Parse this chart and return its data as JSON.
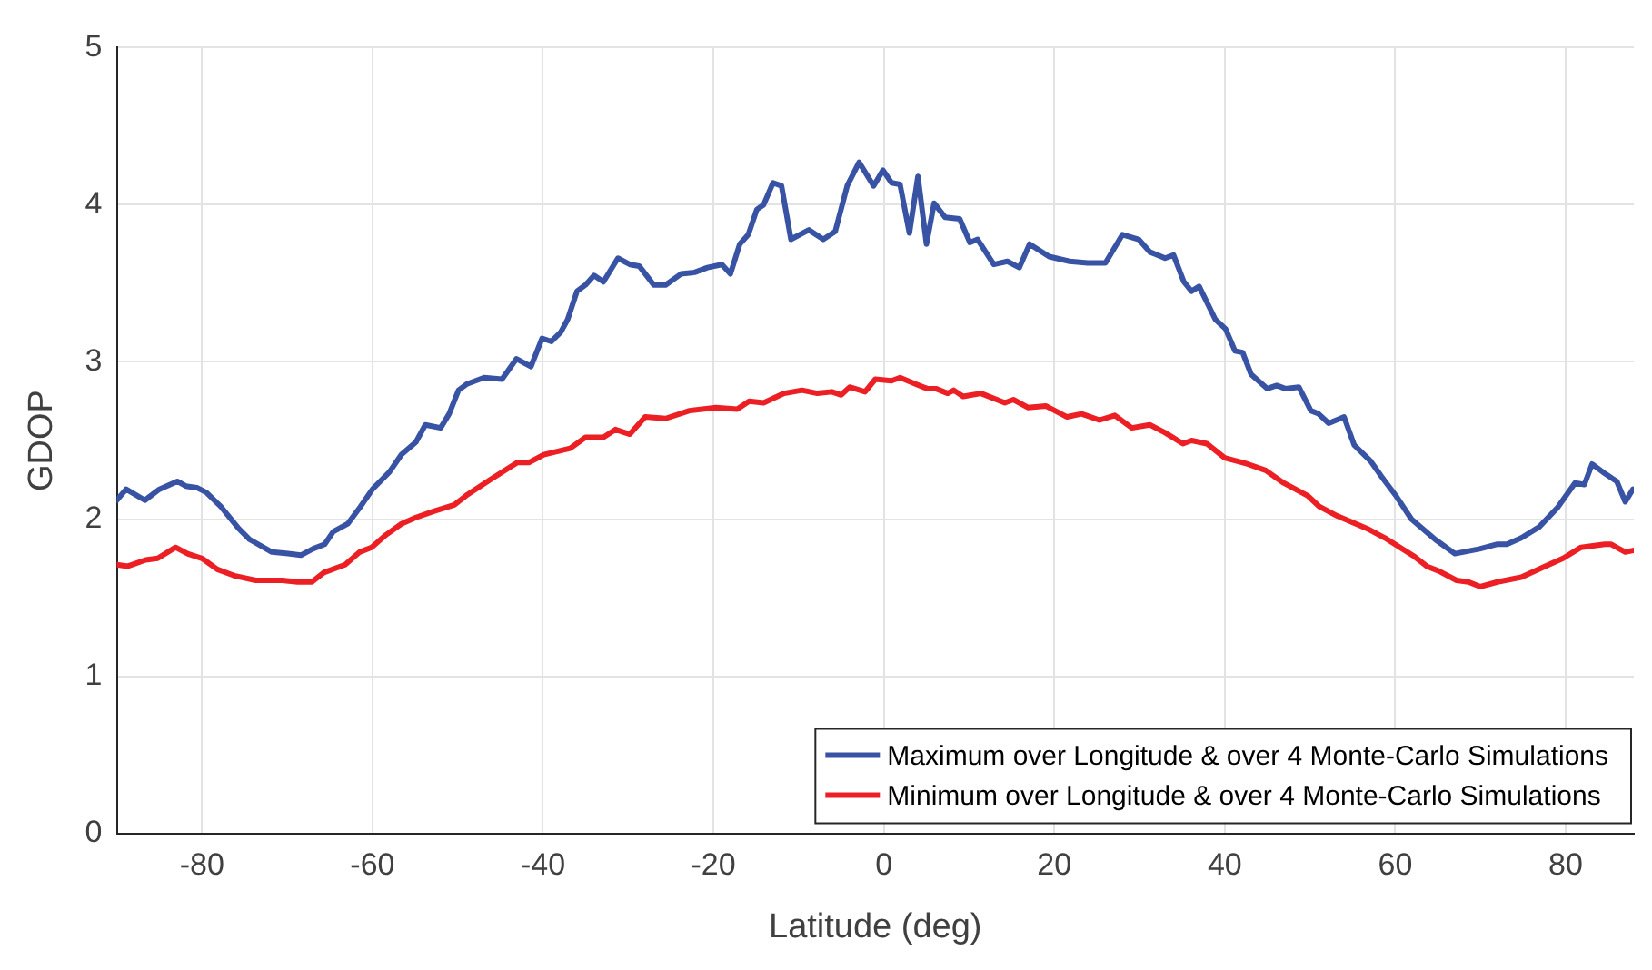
{
  "chart_data": {
    "type": "line",
    "xlabel": "Latitude (deg)",
    "ylabel": "GDOP",
    "xlim": [
      -90,
      88
    ],
    "xticks": [
      -80,
      -60,
      -40,
      -20,
      0,
      20,
      40,
      60,
      80
    ],
    "ylim": [
      0,
      5
    ],
    "yticks": [
      0,
      1,
      2,
      3,
      4,
      5
    ],
    "grid": true,
    "legend": "bottom right",
    "marker": "none",
    "line_style": "solid",
    "series": [
      {
        "name": "Maximum over Longitude & over 4 Monte-Carlo Simulations",
        "color": "#3953a4",
        "x": [
          -90,
          -88.9,
          -86.7,
          -85,
          -82.9,
          -81.9,
          -80.6,
          -79.5,
          -77.8,
          -75.7,
          -74.4,
          -71.8,
          -69.9,
          -68.4,
          -67,
          -65.6,
          -64.6,
          -62.9,
          -61.4,
          -60,
          -58,
          -56.6,
          -54.9,
          -53.8,
          -52,
          -51,
          -49.9,
          -48.9,
          -46.9,
          -44.8,
          -43.1,
          -41.4,
          -40.1,
          -39,
          -37.9,
          -37.1,
          -36,
          -35,
          -34,
          -32.9,
          -31.2,
          -29.8,
          -28.7,
          -27,
          -25.6,
          -23.8,
          -22.2,
          -20.7,
          -19,
          -18,
          -16.9,
          -15.9,
          -14.9,
          -14.1,
          -13,
          -12,
          -10.9,
          -8.8,
          -7.1,
          -5.7,
          -4.3,
          -2.9,
          -1.2,
          -0.1,
          0.9,
          1.9,
          3,
          4,
          5,
          5.9,
          7.2,
          8.9,
          10.1,
          11,
          12.9,
          14.5,
          15.9,
          17.1,
          19.4,
          21.8,
          23.9,
          26,
          28,
          29.9,
          31.2,
          33,
          34,
          35.2,
          36.1,
          37,
          38.9,
          40.1,
          41.2,
          42.1,
          43.1,
          45,
          46.1,
          47.1,
          48.7,
          50.1,
          51,
          52.2,
          54,
          55.2,
          57.1,
          58.4,
          60.2,
          61.9,
          64.7,
          67,
          69.9,
          72,
          73.1,
          74.8,
          76.9,
          79,
          81.1,
          82.2,
          83.1,
          84.6,
          86,
          87,
          87.9
        ],
        "values": [
          2.12,
          2.19,
          2.12,
          2.19,
          2.24,
          2.21,
          2.2,
          2.17,
          2.08,
          1.94,
          1.87,
          1.79,
          1.78,
          1.77,
          1.81,
          1.84,
          1.92,
          1.97,
          2.08,
          2.19,
          2.3,
          2.41,
          2.49,
          2.6,
          2.58,
          2.67,
          2.82,
          2.86,
          2.9,
          2.89,
          3.02,
          2.97,
          3.15,
          3.13,
          3.19,
          3.27,
          3.45,
          3.49,
          3.55,
          3.51,
          3.66,
          3.62,
          3.61,
          3.49,
          3.49,
          3.56,
          3.57,
          3.6,
          3.62,
          3.56,
          3.75,
          3.81,
          3.97,
          4,
          4.14,
          4.12,
          3.78,
          3.84,
          3.78,
          3.83,
          4.12,
          4.27,
          4.12,
          4.22,
          4.14,
          4.13,
          3.82,
          4.18,
          3.75,
          4.01,
          3.92,
          3.91,
          3.76,
          3.78,
          3.62,
          3.64,
          3.6,
          3.75,
          3.67,
          3.64,
          3.63,
          3.63,
          3.81,
          3.78,
          3.7,
          3.66,
          3.68,
          3.51,
          3.45,
          3.48,
          3.27,
          3.21,
          3.07,
          3.06,
          2.92,
          2.83,
          2.85,
          2.83,
          2.84,
          2.69,
          2.67,
          2.61,
          2.65,
          2.47,
          2.37,
          2.27,
          2.14,
          2,
          1.87,
          1.78,
          1.81,
          1.84,
          1.84,
          1.88,
          1.95,
          2.07,
          2.23,
          2.22,
          2.35,
          2.29,
          2.24,
          2.11,
          2.19
        ]
      },
      {
        "name": "Minimum over Longitude & over 4 Monte-Carlo Simulations",
        "color": "#ec2024",
        "x": [
          -90,
          -88.7,
          -86.6,
          -85.2,
          -83.1,
          -81.7,
          -80,
          -78.2,
          -76.2,
          -73.7,
          -70.6,
          -68.8,
          -67.1,
          -65.7,
          -63.2,
          -61.5,
          -60.1,
          -58.4,
          -56.6,
          -54.9,
          -52.8,
          -50.4,
          -49,
          -46.2,
          -43,
          -41.6,
          -39.9,
          -36.8,
          -35,
          -32.9,
          -31.5,
          -29.8,
          -28,
          -25.6,
          -22.8,
          -19.7,
          -17.2,
          -15.8,
          -14.1,
          -11.7,
          -9.6,
          -7.8,
          -6.1,
          -5,
          -4,
          -2.2,
          -1,
          0.9,
          1.9,
          3.7,
          5.1,
          6.1,
          7.5,
          8.2,
          9.3,
          11.4,
          14.2,
          15.2,
          16.9,
          19,
          21.5,
          23.2,
          25.3,
          27.1,
          29.1,
          31.2,
          33,
          35.1,
          36.1,
          37.9,
          40,
          42.7,
          44.8,
          46.9,
          49.7,
          51.1,
          53.2,
          56.7,
          58.8,
          62.3,
          63.7,
          65.1,
          67.2,
          68.6,
          70,
          72,
          74.8,
          77.6,
          79.7,
          81.8,
          84.6,
          85.3,
          87,
          87.9
        ],
        "values": [
          1.71,
          1.7,
          1.74,
          1.75,
          1.82,
          1.78,
          1.75,
          1.68,
          1.64,
          1.61,
          1.61,
          1.6,
          1.6,
          1.66,
          1.71,
          1.79,
          1.82,
          1.9,
          1.97,
          2.01,
          2.05,
          2.09,
          2.15,
          2.25,
          2.36,
          2.36,
          2.41,
          2.45,
          2.52,
          2.52,
          2.57,
          2.54,
          2.65,
          2.64,
          2.69,
          2.71,
          2.7,
          2.75,
          2.74,
          2.8,
          2.82,
          2.8,
          2.81,
          2.79,
          2.84,
          2.81,
          2.89,
          2.88,
          2.9,
          2.86,
          2.83,
          2.83,
          2.8,
          2.82,
          2.78,
          2.8,
          2.74,
          2.76,
          2.71,
          2.72,
          2.65,
          2.67,
          2.63,
          2.66,
          2.58,
          2.6,
          2.55,
          2.48,
          2.5,
          2.48,
          2.39,
          2.35,
          2.31,
          2.23,
          2.15,
          2.08,
          2.02,
          1.94,
          1.88,
          1.76,
          1.7,
          1.67,
          1.61,
          1.6,
          1.57,
          1.6,
          1.63,
          1.7,
          1.75,
          1.82,
          1.84,
          1.84,
          1.79,
          1.8
        ]
      }
    ]
  }
}
